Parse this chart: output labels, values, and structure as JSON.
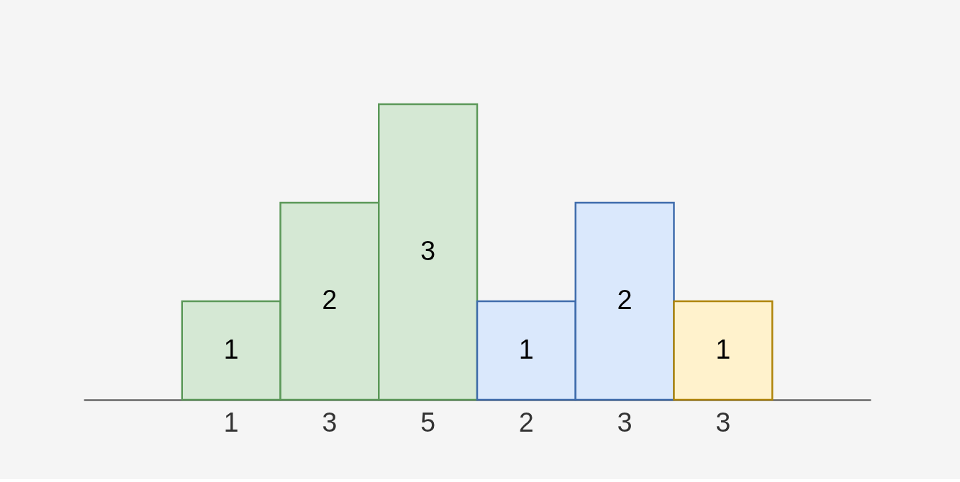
{
  "chart_data": {
    "type": "bar",
    "categories": [
      "1",
      "3",
      "5",
      "2",
      "3",
      "3"
    ],
    "values": [
      1,
      2,
      3,
      1,
      2,
      1
    ],
    "colors": [
      "#d5e8d4",
      "#d5e8d4",
      "#d5e8d4",
      "#dae8fc",
      "#dae8fc",
      "#fff2cc"
    ],
    "data_labels": true,
    "grid": false
  }
}
